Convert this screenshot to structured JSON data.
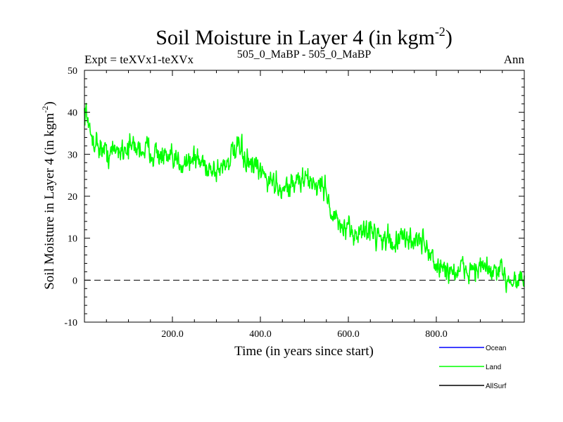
{
  "chart_data": {
    "type": "line",
    "title_main": "Soil Moisture in Layer 4 (in kgm",
    "title_sup": "-2",
    "title_close": ")",
    "subtitle_left": "Expt = teXVx1-teXVx",
    "subtitle_center": "505_0_MaBP - 505_0_MaBP",
    "subtitle_right": "Ann",
    "ylabel_main": "Soil Moisture in Layer 4 (in kgm",
    "ylabel_sup": "-2",
    "ylabel_close": ")",
    "xlabel": "Time (in years since start)",
    "xlim": [
      0,
      1000
    ],
    "ylim": [
      -10,
      50
    ],
    "x_ticks": [
      {
        "value": 200,
        "label": "200.0"
      },
      {
        "value": 400,
        "label": "400.0"
      },
      {
        "value": 600,
        "label": "600.0"
      },
      {
        "value": 800,
        "label": "800.0"
      }
    ],
    "y_ticks": [
      {
        "value": -10,
        "label": "-10"
      },
      {
        "value": 0,
        "label": "0"
      },
      {
        "value": 10,
        "label": "10"
      },
      {
        "value": 20,
        "label": "20"
      },
      {
        "value": 30,
        "label": "30"
      },
      {
        "value": 40,
        "label": "40"
      },
      {
        "value": 50,
        "label": "50"
      }
    ],
    "zero_line": 0,
    "legend": [
      {
        "name": "Ocean",
        "color": "#0000ff"
      },
      {
        "name": "Land",
        "color": "#00ff00"
      },
      {
        "name": "AllSurf",
        "color": "#000000"
      }
    ],
    "series": [
      {
        "name": "Land",
        "color": "#00ff00",
        "trend_x": [
          0,
          5,
          10,
          50,
          100,
          150,
          200,
          250,
          300,
          350,
          380,
          420,
          450,
          500,
          550,
          560,
          580,
          600,
          650,
          700,
          750,
          780,
          800,
          850,
          900,
          950,
          1000
        ],
        "trend_y": [
          40,
          41,
          35,
          30,
          32,
          31,
          28,
          29,
          26,
          31,
          27,
          24,
          22,
          24,
          22,
          16,
          13,
          11,
          12,
          9,
          10,
          8,
          3,
          2,
          3,
          1,
          0
        ],
        "amplitude": 4.5
      }
    ]
  }
}
